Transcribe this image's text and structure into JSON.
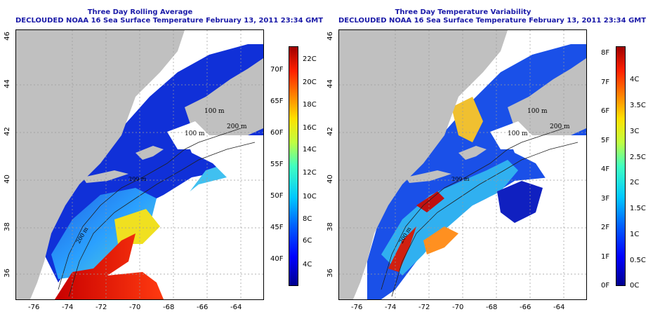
{
  "left_map": {
    "title_line1": "Three Day Rolling Average",
    "title_line2": "DECLOUDED NOAA 16 Sea Surface Temperature February 13, 2011 23:34 GMT",
    "x_ticks": [
      "-76",
      "-74",
      "-72",
      "-70",
      "-68",
      "-66",
      "-64"
    ],
    "y_ticks": [
      "36",
      "38",
      "40",
      "42",
      "44",
      "46"
    ],
    "contour_labels": [
      "100 m",
      "100 m",
      "200 m",
      "200 m",
      "200 m"
    ],
    "colorbar_f": [
      "40F",
      "45F",
      "50F",
      "55F",
      "60F",
      "65F",
      "70F"
    ],
    "colorbar_c": [
      "4C",
      "6C",
      "8C",
      "10C",
      "12C",
      "14C",
      "16C",
      "18C",
      "20C",
      "22C"
    ]
  },
  "right_map": {
    "title_line1": "Three Day Temperature Variability",
    "title_line2": "DECLOUDED NOAA 16 Sea Surface Temperature February 13, 2011 23:34 GMT",
    "x_ticks": [
      "-76",
      "-74",
      "-72",
      "-70",
      "-68",
      "-66",
      "-64"
    ],
    "y_ticks": [
      "36",
      "38",
      "40",
      "42",
      "44",
      "46"
    ],
    "contour_labels": [
      "100 m",
      "100 m",
      "200 m",
      "200 m",
      "200 m"
    ],
    "colorbar_f": [
      "0F",
      "1F",
      "2F",
      "3F",
      "4F",
      "5F",
      "6F",
      "7F",
      "8F"
    ],
    "colorbar_c": [
      "0C",
      "0.5C",
      "1C",
      "1.5C",
      "2C",
      "2.5C",
      "3C",
      "3.5C",
      "4C"
    ]
  },
  "colors": {
    "land": "#c0c0c0",
    "title": "#1a1aa8",
    "scale_low": "#00008f",
    "scale_high": "#8b0000"
  }
}
